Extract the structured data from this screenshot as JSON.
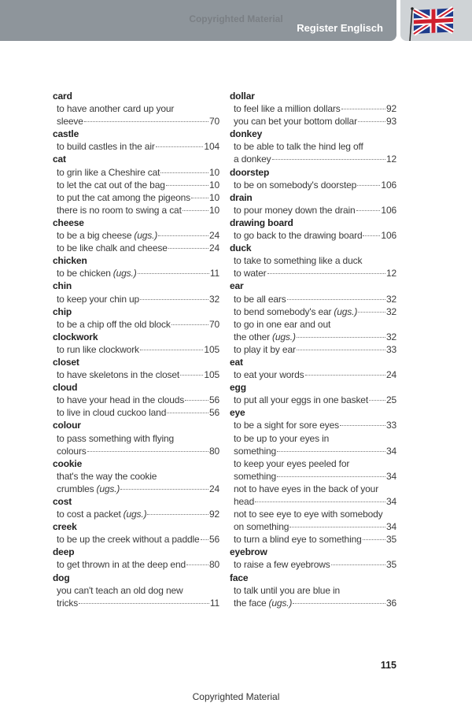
{
  "header": {
    "watermark": "Copyrighted Material",
    "section_title": "Register Englisch",
    "flag_icon": "union-jack-flag-icon",
    "band_color": "#8e959b"
  },
  "columns": [
    [
      {
        "head": "card",
        "items": [
          {
            "pre": "to have another card up your",
            "text": "sleeve",
            "ugs": "",
            "page": "70"
          }
        ]
      },
      {
        "head": "castle",
        "items": [
          {
            "pre": "",
            "text": "to build castles in the air",
            "ugs": "",
            "page": "104"
          }
        ]
      },
      {
        "head": "cat",
        "items": [
          {
            "pre": "",
            "text": "to grin like a Cheshire cat",
            "ugs": "",
            "page": "10"
          },
          {
            "pre": "",
            "text": "to let the cat out of the bag",
            "ugs": "",
            "page": "10"
          },
          {
            "pre": "",
            "text": "to put the cat among the pigeons",
            "ugs": "",
            "page": "10"
          },
          {
            "pre": "",
            "text": "there is no room to swing a cat",
            "ugs": "",
            "page": "10"
          }
        ]
      },
      {
        "head": "cheese",
        "items": [
          {
            "pre": "",
            "text": "to be a big cheese",
            "ugs": "(ugs.)",
            "page": "24"
          },
          {
            "pre": "",
            "text": "to be like chalk and cheese",
            "ugs": "",
            "page": "24"
          }
        ]
      },
      {
        "head": "chicken",
        "items": [
          {
            "pre": "",
            "text": "to be chicken",
            "ugs": "(ugs.)",
            "page": "11"
          }
        ]
      },
      {
        "head": "chin",
        "items": [
          {
            "pre": "",
            "text": "to keep your chin up",
            "ugs": "",
            "page": "32"
          }
        ]
      },
      {
        "head": "chip",
        "items": [
          {
            "pre": "",
            "text": "to be a chip off the old block",
            "ugs": "",
            "page": "70"
          }
        ]
      },
      {
        "head": "clockwork",
        "items": [
          {
            "pre": "",
            "text": "to run like clockwork",
            "ugs": "",
            "page": "105"
          }
        ]
      },
      {
        "head": "closet",
        "items": [
          {
            "pre": "",
            "text": "to have skeletons in the closet",
            "ugs": "",
            "page": "105"
          }
        ]
      },
      {
        "head": "cloud",
        "items": [
          {
            "pre": "",
            "text": "to have your head in the clouds",
            "ugs": "",
            "page": "56"
          },
          {
            "pre": "",
            "text": "to live in cloud cuckoo land",
            "ugs": "",
            "page": "56"
          }
        ]
      },
      {
        "head": "colour",
        "items": [
          {
            "pre": "to pass something with flying",
            "text": "colours",
            "ugs": "",
            "page": "80"
          }
        ]
      },
      {
        "head": "cookie",
        "items": [
          {
            "pre": "that's the way the cookie",
            "text": "crumbles",
            "ugs": "(ugs.)",
            "page": "24"
          }
        ]
      },
      {
        "head": "cost",
        "items": [
          {
            "pre": "",
            "text": "to cost a packet",
            "ugs": "(ugs.)",
            "page": "92"
          }
        ]
      },
      {
        "head": "creek",
        "items": [
          {
            "pre": "",
            "text": "to be up the creek without a paddle",
            "ugs": "",
            "page": "56"
          }
        ]
      },
      {
        "head": "deep",
        "items": [
          {
            "pre": "",
            "text": "to get thrown in at the deep end",
            "ugs": "",
            "page": "80"
          }
        ]
      },
      {
        "head": "dog",
        "items": [
          {
            "pre": "you can't teach an old dog new",
            "text": "tricks",
            "ugs": "",
            "page": "11"
          }
        ]
      }
    ],
    [
      {
        "head": "dollar",
        "items": [
          {
            "pre": "",
            "text": "to feel like a million dollars",
            "ugs": "",
            "page": "92"
          },
          {
            "pre": "",
            "text": "you can bet your bottom dollar",
            "ugs": "",
            "page": "93"
          }
        ]
      },
      {
        "head": "donkey",
        "items": [
          {
            "pre": "to be able to talk the hind leg off",
            "text": "a donkey",
            "ugs": "",
            "page": "12"
          }
        ]
      },
      {
        "head": "doorstep",
        "items": [
          {
            "pre": "",
            "text": "to be on somebody's doorstep",
            "ugs": "",
            "page": "106"
          }
        ]
      },
      {
        "head": "drain",
        "items": [
          {
            "pre": "",
            "text": "to pour money down the drain",
            "ugs": "",
            "page": "106"
          }
        ]
      },
      {
        "head": "drawing board",
        "items": [
          {
            "pre": "",
            "text": "to go back to the drawing board",
            "ugs": "",
            "page": "106"
          }
        ]
      },
      {
        "head": "duck",
        "items": [
          {
            "pre": "to take to something like a duck",
            "text": "to water",
            "ugs": "",
            "page": "12"
          }
        ]
      },
      {
        "head": "ear",
        "items": [
          {
            "pre": "",
            "text": "to be all ears",
            "ugs": "",
            "page": "32"
          },
          {
            "pre": "",
            "text": "to bend somebody's ear",
            "ugs": "(ugs.)",
            "page": "32"
          },
          {
            "pre": "to go in one ear and out",
            "text": "the other",
            "ugs": "(ugs.)",
            "page": "32"
          },
          {
            "pre": "",
            "text": "to play it by ear",
            "ugs": "",
            "page": "33"
          }
        ]
      },
      {
        "head": "eat",
        "items": [
          {
            "pre": "",
            "text": "to eat your words",
            "ugs": "",
            "page": "24"
          }
        ]
      },
      {
        "head": "egg",
        "items": [
          {
            "pre": "",
            "text": "to put all your eggs in one basket",
            "ugs": "",
            "page": "25"
          }
        ]
      },
      {
        "head": "eye",
        "items": [
          {
            "pre": "",
            "text": "to be a sight for sore eyes",
            "ugs": "",
            "page": "33"
          },
          {
            "pre": "to be up to your eyes in",
            "text": "something",
            "ugs": "",
            "page": "34"
          },
          {
            "pre": "to keep your eyes peeled for",
            "text": "something",
            "ugs": "",
            "page": "34"
          },
          {
            "pre": "not to have eyes in the back of your",
            "text": "head",
            "ugs": "",
            "page": "34"
          },
          {
            "pre": "not to see eye to eye with somebody",
            "text": "on something",
            "ugs": "",
            "page": "34"
          },
          {
            "pre": "",
            "text": "to turn a blind eye to something",
            "ugs": "",
            "page": "35"
          }
        ]
      },
      {
        "head": "eyebrow",
        "items": [
          {
            "pre": "",
            "text": "to raise a few eyebrows",
            "ugs": "",
            "page": "35"
          }
        ]
      },
      {
        "head": "face",
        "items": [
          {
            "pre": "to talk until you are blue in",
            "text": "the face",
            "ugs": "(ugs.)",
            "page": "36"
          }
        ]
      }
    ]
  ],
  "footer": {
    "page_number": "115",
    "watermark": "Copyrighted Material"
  }
}
